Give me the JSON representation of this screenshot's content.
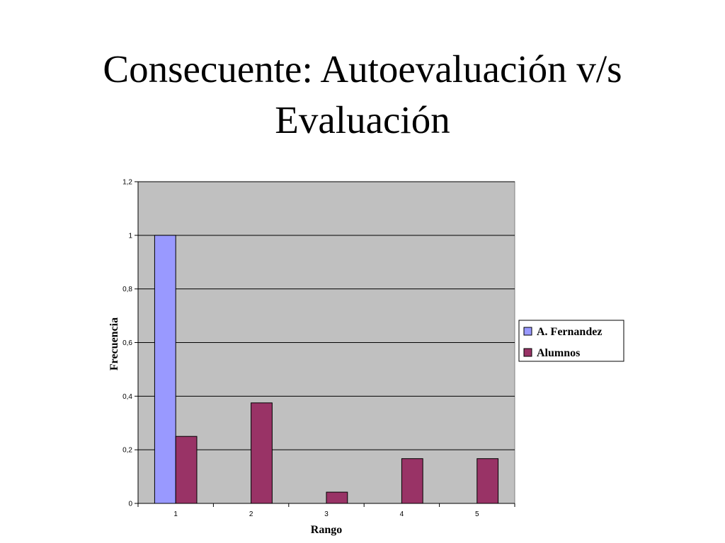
{
  "slide": {
    "title_line1": "Consecuente: Autoevaluación v/s",
    "title_line2": "Evaluación"
  },
  "chart_data": {
    "type": "bar",
    "categories": [
      "1",
      "2",
      "3",
      "4",
      "5"
    ],
    "series": [
      {
        "name": "A. Fernandez",
        "color": "#9999FF",
        "values": [
          1,
          0,
          0,
          0,
          0
        ]
      },
      {
        "name": "Alumnos",
        "color": "#993366",
        "values": [
          0.25,
          0.375,
          0.042,
          0.167,
          0.167
        ]
      }
    ],
    "xlabel": "Rango",
    "ylabel": "Frecuencia",
    "ylim": [
      0,
      1.2
    ],
    "yticks": [
      0,
      0.2,
      0.4,
      0.6,
      0.8,
      1,
      1.2
    ],
    "ytick_labels": [
      "0",
      "0,2",
      "0,4",
      "0,6",
      "0,8",
      "1",
      "1,2"
    ],
    "grid": true,
    "plot_background": "#C0C0C0",
    "legend_position": "right"
  }
}
